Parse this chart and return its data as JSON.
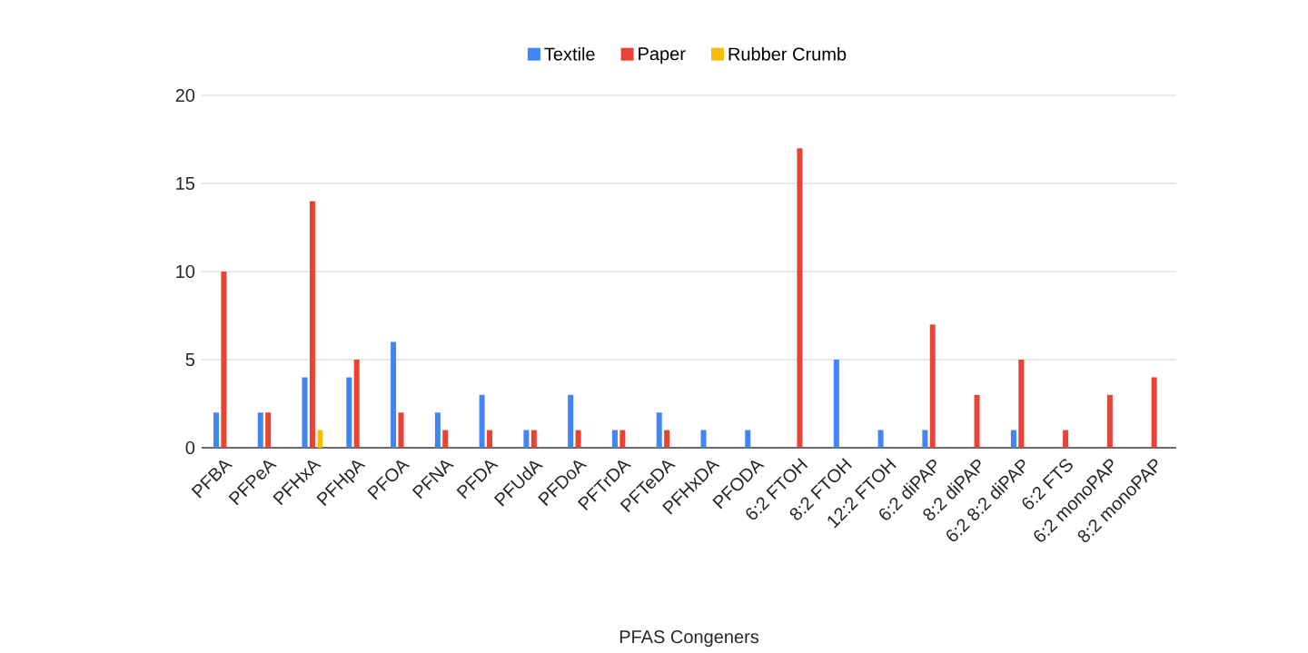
{
  "chart_data": {
    "type": "bar",
    "xlabel": "PFAS Congeners",
    "categories": [
      "PFBA",
      "PFPeA",
      "PFHxA",
      "PFHpA",
      "PFOA",
      "PFNA",
      "PFDA",
      "PFUdA",
      "PFDoA",
      "PFTrDA",
      "PFTeDA",
      "PFHxDA",
      "PFODA",
      "6:2 FTOH",
      "8:2 FTOH",
      "12:2 FTOH",
      "6:2 diPAP",
      "8:2 diPAP",
      "6:2 8:2 diPAP",
      "6:2 FTS",
      "6:2 monoPAP",
      "8:2 monoPAP"
    ],
    "series": [
      {
        "name": "Textile",
        "color": "#4285f4",
        "values": [
          2,
          2,
          4,
          4,
          6,
          2,
          3,
          1,
          3,
          1,
          2,
          1,
          1,
          null,
          5,
          1,
          1,
          null,
          1,
          null,
          null,
          null
        ]
      },
      {
        "name": "Paper",
        "color": "#ea4335",
        "values": [
          10,
          2,
          14,
          5,
          2,
          1,
          1,
          1,
          1,
          1,
          1,
          null,
          null,
          17,
          null,
          null,
          7,
          3,
          5,
          1,
          3,
          4
        ]
      },
      {
        "name": "Rubber Crumb",
        "color": "#fbbc04",
        "values": [
          null,
          null,
          1,
          null,
          null,
          null,
          null,
          null,
          null,
          null,
          null,
          null,
          null,
          null,
          null,
          null,
          null,
          null,
          null,
          null,
          null,
          null
        ]
      }
    ],
    "ylim": [
      0,
      20
    ],
    "yticks": [
      0,
      5,
      10,
      15,
      20
    ],
    "grid": "y",
    "legend": "top"
  }
}
